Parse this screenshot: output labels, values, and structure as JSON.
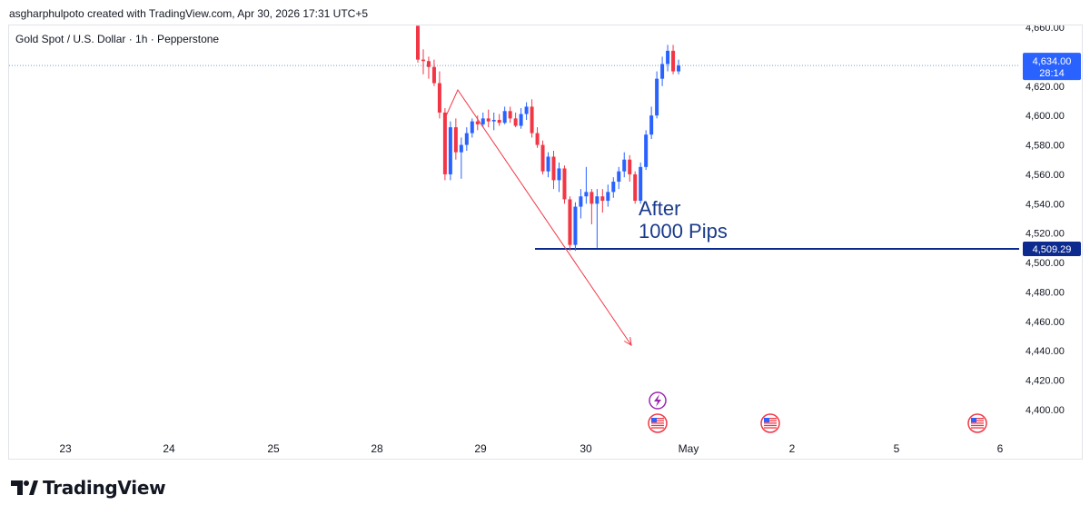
{
  "header": {
    "attribution": "asgharphulpoto created with TradingView.com, Apr 30, 2026 17:31 UTC+5"
  },
  "symbol": {
    "title": "Gold Spot / U.S. Dollar · 1h · Pepperstone"
  },
  "footer": {
    "brand": "TradingView"
  },
  "colors": {
    "up": "#2962ff",
    "down": "#f23645",
    "level_line": "#0d2b8f",
    "price_label": "#2962ff",
    "level_label": "#0d2b8f",
    "arrow": "#f23645",
    "annotation": "#1a3a8a"
  },
  "chart_data": {
    "type": "candlestick",
    "ylim": [
      4389,
      4661
    ],
    "y_ticks": [
      "4,400.00",
      "4,420.00",
      "4,440.00",
      "4,460.00",
      "4,480.00",
      "4,500.00",
      "4,520.00",
      "4,540.00",
      "4,560.00",
      "4,580.00",
      "4,600.00",
      "4,620.00",
      "4,640.00",
      "4,660.00"
    ],
    "x_ticks": [
      "23",
      "24",
      "25",
      "28",
      "29",
      "30",
      "May",
      "2",
      "5",
      "6"
    ],
    "candles": [
      {
        "t": "Apr 28 12:00",
        "o": 4661,
        "h": 4661,
        "l": 4636,
        "c": 4638
      },
      {
        "t": "Apr 28 13:00",
        "o": 4638,
        "h": 4645,
        "l": 4628,
        "c": 4637
      },
      {
        "t": "Apr 28 14:00",
        "o": 4637,
        "h": 4640,
        "l": 4625,
        "c": 4633
      },
      {
        "t": "Apr 28 15:00",
        "o": 4633,
        "h": 4638,
        "l": 4620,
        "c": 4622
      },
      {
        "t": "Apr 28 16:00",
        "o": 4622,
        "h": 4630,
        "l": 4598,
        "c": 4602
      },
      {
        "t": "Apr 28 17:00",
        "o": 4602,
        "h": 4605,
        "l": 4556,
        "c": 4560
      },
      {
        "t": "Apr 28 18:00",
        "o": 4560,
        "h": 4596,
        "l": 4556,
        "c": 4592
      },
      {
        "t": "Apr 28 19:00",
        "o": 4592,
        "h": 4598,
        "l": 4570,
        "c": 4575
      },
      {
        "t": "Apr 28 20:00",
        "o": 4575,
        "h": 4585,
        "l": 4557,
        "c": 4580
      },
      {
        "t": "Apr 28 21:00",
        "o": 4580,
        "h": 4592,
        "l": 4576,
        "c": 4588
      },
      {
        "t": "Apr 28 22:00",
        "o": 4588,
        "h": 4598,
        "l": 4585,
        "c": 4596
      },
      {
        "t": "Apr 28 23:00",
        "o": 4596,
        "h": 4600,
        "l": 4590,
        "c": 4594
      },
      {
        "t": "Apr 29 00:00",
        "o": 4594,
        "h": 4602,
        "l": 4592,
        "c": 4598
      },
      {
        "t": "Apr 29 01:00",
        "o": 4598,
        "h": 4604,
        "l": 4592,
        "c": 4596
      },
      {
        "t": "Apr 29 02:00",
        "o": 4596,
        "h": 4602,
        "l": 4590,
        "c": 4597
      },
      {
        "t": "Apr 29 03:00",
        "o": 4597,
        "h": 4601,
        "l": 4593,
        "c": 4595
      },
      {
        "t": "Apr 29 04:00",
        "o": 4595,
        "h": 4606,
        "l": 4594,
        "c": 4603
      },
      {
        "t": "Apr 29 05:00",
        "o": 4603,
        "h": 4606,
        "l": 4595,
        "c": 4598
      },
      {
        "t": "Apr 29 06:00",
        "o": 4598,
        "h": 4602,
        "l": 4592,
        "c": 4593
      },
      {
        "t": "Apr 29 07:00",
        "o": 4593,
        "h": 4605,
        "l": 4591,
        "c": 4601
      },
      {
        "t": "Apr 29 08:00",
        "o": 4601,
        "h": 4609,
        "l": 4597,
        "c": 4606
      },
      {
        "t": "Apr 29 09:00",
        "o": 4606,
        "h": 4611,
        "l": 4585,
        "c": 4588
      },
      {
        "t": "Apr 29 10:00",
        "o": 4588,
        "h": 4592,
        "l": 4578,
        "c": 4580
      },
      {
        "t": "Apr 29 11:00",
        "o": 4580,
        "h": 4583,
        "l": 4560,
        "c": 4562
      },
      {
        "t": "Apr 29 12:00",
        "o": 4562,
        "h": 4575,
        "l": 4558,
        "c": 4572
      },
      {
        "t": "Apr 29 13:00",
        "o": 4572,
        "h": 4576,
        "l": 4550,
        "c": 4556
      },
      {
        "t": "Apr 29 14:00",
        "o": 4556,
        "h": 4568,
        "l": 4548,
        "c": 4564
      },
      {
        "t": "Apr 29 15:00",
        "o": 4564,
        "h": 4566,
        "l": 4540,
        "c": 4543
      },
      {
        "t": "Apr 29 16:00",
        "o": 4543,
        "h": 4545,
        "l": 4508,
        "c": 4512
      },
      {
        "t": "Apr 29 17:00",
        "o": 4512,
        "h": 4541,
        "l": 4508,
        "c": 4538
      },
      {
        "t": "Apr 29 18:00",
        "o": 4538,
        "h": 4550,
        "l": 4530,
        "c": 4545
      },
      {
        "t": "Apr 29 19:00",
        "o": 4545,
        "h": 4565,
        "l": 4540,
        "c": 4548
      },
      {
        "t": "Apr 29 20:00",
        "o": 4548,
        "h": 4550,
        "l": 4526,
        "c": 4540
      },
      {
        "t": "Apr 29 21:00",
        "o": 4540,
        "h": 4550,
        "l": 4510,
        "c": 4545
      },
      {
        "t": "Apr 29 22:00",
        "o": 4545,
        "h": 4550,
        "l": 4534,
        "c": 4542
      },
      {
        "t": "Apr 29 23:00",
        "o": 4542,
        "h": 4553,
        "l": 4538,
        "c": 4548
      },
      {
        "t": "Apr 30 00:00",
        "o": 4548,
        "h": 4558,
        "l": 4544,
        "c": 4555
      },
      {
        "t": "Apr 30 01:00",
        "o": 4555,
        "h": 4565,
        "l": 4550,
        "c": 4562
      },
      {
        "t": "Apr 30 02:00",
        "o": 4562,
        "h": 4575,
        "l": 4558,
        "c": 4570
      },
      {
        "t": "Apr 30 03:00",
        "o": 4570,
        "h": 4573,
        "l": 4555,
        "c": 4560
      },
      {
        "t": "Apr 30 04:00",
        "o": 4560,
        "h": 4562,
        "l": 4540,
        "c": 4542
      },
      {
        "t": "Apr 30 05:00",
        "o": 4542,
        "h": 4568,
        "l": 4540,
        "c": 4565
      },
      {
        "t": "Apr 30 06:00",
        "o": 4565,
        "h": 4590,
        "l": 4563,
        "c": 4587
      },
      {
        "t": "Apr 30 07:00",
        "o": 4587,
        "h": 4606,
        "l": 4584,
        "c": 4600
      },
      {
        "t": "Apr 30 08:00",
        "o": 4600,
        "h": 4630,
        "l": 4598,
        "c": 4625
      },
      {
        "t": "Apr 30 09:00",
        "o": 4625,
        "h": 4640,
        "l": 4620,
        "c": 4635
      },
      {
        "t": "Apr 30 10:00",
        "o": 4635,
        "h": 4648,
        "l": 4630,
        "c": 4644
      },
      {
        "t": "Apr 30 11:00",
        "o": 4644,
        "h": 4648,
        "l": 4628,
        "c": 4630
      },
      {
        "t": "Apr 30 12:00",
        "o": 4630,
        "h": 4638,
        "l": 4628,
        "c": 4634
      }
    ],
    "current_price": {
      "value": 4634.0,
      "label": "4,634.00",
      "countdown": "28:14"
    },
    "level": {
      "value": 4509.29,
      "label": "4,509.29"
    },
    "annotation": {
      "line1": "After",
      "line2": "1000 Pips"
    },
    "event_icons": [
      "lightning-icon",
      "us-flag-icon",
      "us-flag-icon",
      "us-flag-icon"
    ]
  }
}
